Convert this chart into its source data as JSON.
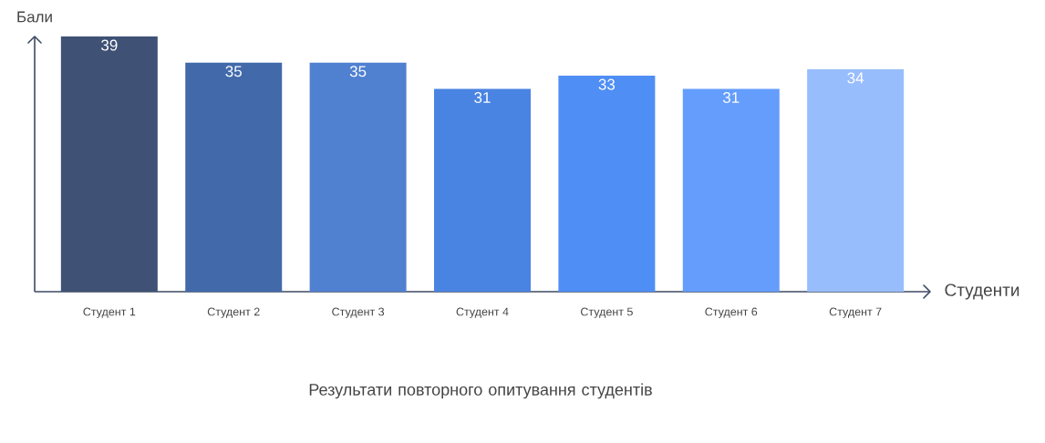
{
  "chart_data": {
    "type": "bar",
    "title": "Результати повторного опитування студентів",
    "xlabel": "Студенти",
    "ylabel": "Бали",
    "categories": [
      "Студент 1",
      "Студент 2",
      "Студент 3",
      "Студент 4",
      "Студент 5",
      "Студент 6",
      "Студент 7"
    ],
    "values": [
      39,
      35,
      35,
      31,
      33,
      31,
      34
    ],
    "colors": [
      "#3f5275",
      "#426aab",
      "#5080d0",
      "#4a84e2",
      "#4f8ef5",
      "#649dfc",
      "#98bdfd"
    ],
    "tick_labels": "x",
    "data_labels": true
  }
}
